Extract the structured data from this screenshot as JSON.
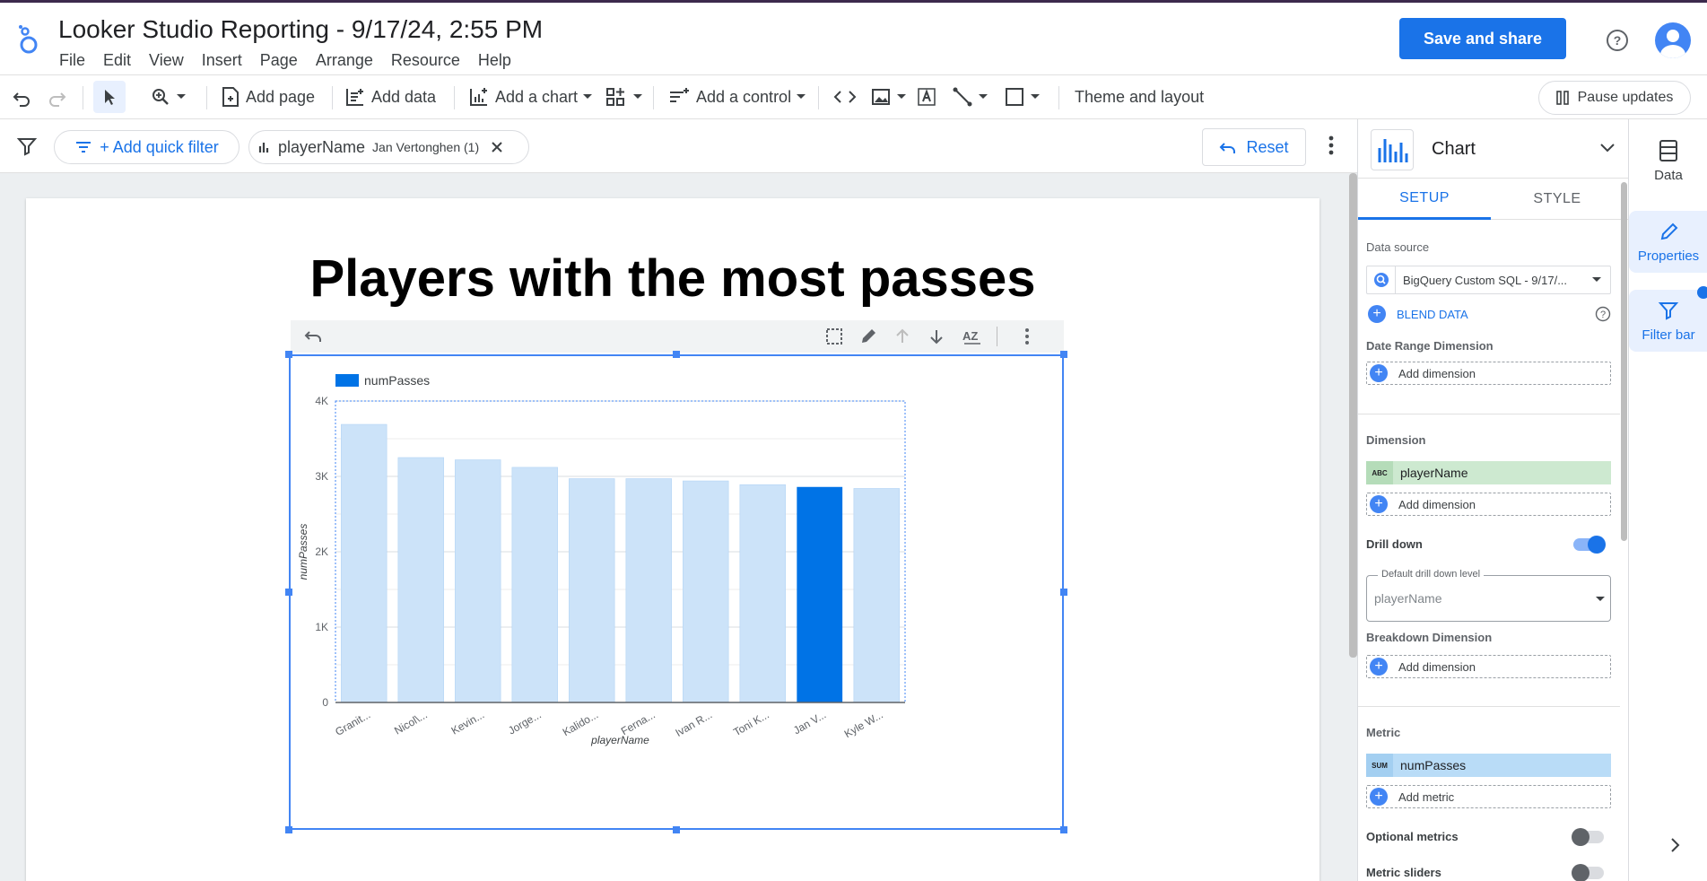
{
  "app": {
    "title": "Looker Studio Reporting - 9/17/24, 2:55 PM",
    "menu": [
      "File",
      "Edit",
      "View",
      "Insert",
      "Page",
      "Arrange",
      "Resource",
      "Help"
    ],
    "save_label": "Save and share",
    "colors": {
      "accent": "#1a73e8",
      "highlight_bar": "#0073e6",
      "faded_bar": "#cce3f9",
      "dimension_chip": "#cde9d0",
      "metric_chip": "#b9dcf7"
    }
  },
  "toolbar": {
    "add_page": "Add page",
    "add_data": "Add data",
    "add_chart": "Add a chart",
    "add_control": "Add a control",
    "theme": "Theme and layout",
    "pause": "Pause updates"
  },
  "filterbar": {
    "quick_filter": "+ Add quick filter",
    "chip_field": "playerName",
    "chip_value": "Jan Vertonghen (1)",
    "reset": "Reset"
  },
  "page": {
    "title": "Players with the most passes"
  },
  "chart_data": {
    "type": "bar",
    "categories": [
      "Granit...",
      "Nicol\\...",
      "Kevin...",
      "Jorge...",
      "Kalido...",
      "Ferna...",
      "Ivan R...",
      "Toni K...",
      "Jan V...",
      "Kyle W..."
    ],
    "series": [
      {
        "name": "numPasses",
        "values": [
          3690,
          3250,
          3220,
          3120,
          2970,
          2970,
          2940,
          2890,
          2860,
          2840
        ]
      }
    ],
    "highlighted_index": 8,
    "xlabel": "playerName",
    "ylabel": "numPasses",
    "ylim": [
      0,
      4000
    ],
    "yticks": [
      "0",
      "1K",
      "2K",
      "3K",
      "4K"
    ],
    "legend": "top-left",
    "grid": true
  },
  "panel": {
    "chart_type": "Chart",
    "tabs": [
      "SETUP",
      "STYLE"
    ],
    "data_source_label": "Data source",
    "data_source": "BigQuery Custom SQL - 9/17/...",
    "blend": "BLEND DATA",
    "date_range_label": "Date Range Dimension",
    "add_dimension": "Add dimension",
    "dimension_label": "Dimension",
    "dimension_field": "playerName",
    "dimension_tag": "ABC",
    "drill_down_label": "Drill down",
    "drill_level_label": "Default drill down level",
    "drill_level_value": "playerName",
    "breakdown_label": "Breakdown Dimension",
    "metric_label": "Metric",
    "metric_tag": "SUM",
    "metric_field": "numPasses",
    "add_metric": "Add metric",
    "optional_metrics": "Optional metrics",
    "metric_sliders": "Metric sliders"
  },
  "rail": {
    "data": "Data",
    "properties": "Properties",
    "filter_bar": "Filter bar"
  }
}
